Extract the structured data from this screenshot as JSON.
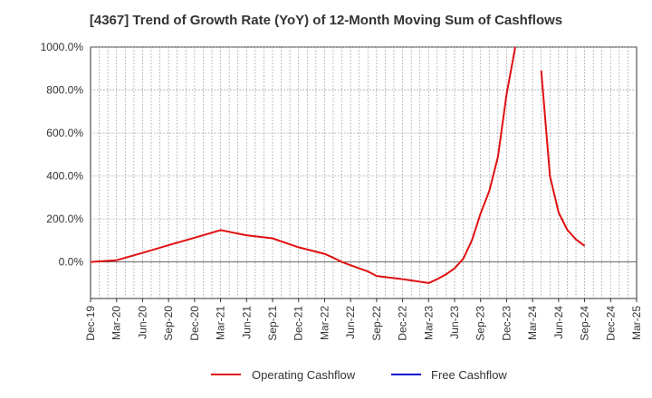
{
  "chart_data": {
    "type": "line",
    "title": "[4367]  Trend of Growth Rate (YoY) of 12-Month Moving Sum of Cashflows",
    "xlabel": "",
    "ylabel": "",
    "x_tick_labels": [
      "Dec-19",
      "Mar-20",
      "Jun-20",
      "Sep-20",
      "Dec-20",
      "Mar-21",
      "Jun-21",
      "Sep-21",
      "Dec-21",
      "Mar-22",
      "Jun-22",
      "Sep-22",
      "Dec-22",
      "Mar-23",
      "Jun-23",
      "Sep-23",
      "Dec-23",
      "Mar-24",
      "Jun-24",
      "Sep-24",
      "Dec-24",
      "Mar-25"
    ],
    "y_tick_labels": [
      "0.0%",
      "200.0%",
      "400.0%",
      "600.0%",
      "800.0%",
      "1000.0%"
    ],
    "y_ticks": [
      0,
      200,
      400,
      600,
      800,
      1000
    ],
    "ylim": [
      -170,
      1000
    ],
    "grid": true,
    "legend_position": "bottom",
    "series": [
      {
        "name": "Operating Cashflow",
        "color": "#e01010",
        "points": [
          [
            "Dec-19",
            0
          ],
          [
            "Mar-20",
            8
          ],
          [
            "Jun-20",
            42
          ],
          [
            "Sep-20",
            78
          ],
          [
            "Dec-20",
            113
          ],
          [
            "Mar-21",
            148
          ],
          [
            "Jun-21",
            124
          ],
          [
            "Sep-21",
            110
          ],
          [
            "Dec-21",
            68
          ],
          [
            "Mar-22",
            38
          ],
          [
            "Apr-22",
            20
          ],
          [
            "May-22",
            0
          ],
          [
            "Jun-22",
            -15
          ],
          [
            "Jul-22",
            -30
          ],
          [
            "Aug-22",
            -44
          ],
          [
            "Sep-22",
            -65
          ],
          [
            "Dec-22",
            -80
          ],
          [
            "Mar-23",
            -98
          ],
          [
            "Apr-23",
            -80
          ],
          [
            "May-23",
            -58
          ],
          [
            "Jun-23",
            -30
          ],
          [
            "Jul-23",
            15
          ],
          [
            "Aug-23",
            100
          ],
          [
            "Sep-23",
            225
          ],
          [
            "Oct-23",
            330
          ],
          [
            "Nov-23",
            490
          ],
          [
            "Dec-23",
            780
          ],
          [
            "Jan-24",
            1000
          ],
          [
            "Feb-24",
            null
          ],
          [
            "Mar-24",
            null
          ],
          [
            "Apr-24",
            890
          ],
          [
            "May-24",
            400
          ],
          [
            "Jun-24",
            230
          ],
          [
            "Jul-24",
            150
          ],
          [
            "Aug-24",
            105
          ],
          [
            "Sep-24",
            75
          ]
        ]
      },
      {
        "name": "Free Cashflow",
        "color": "#0000cc",
        "points": []
      }
    ]
  }
}
